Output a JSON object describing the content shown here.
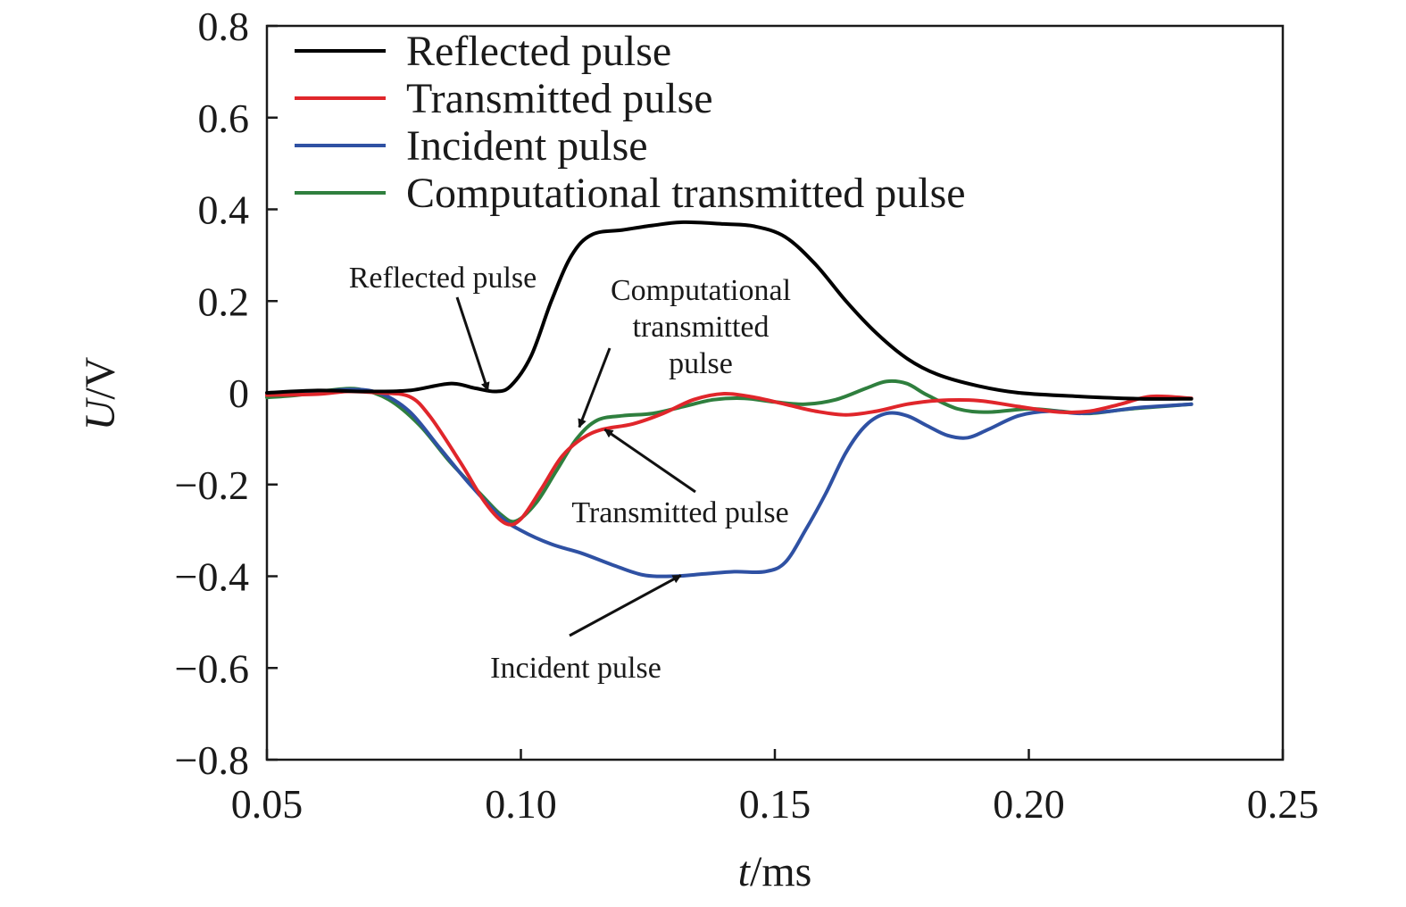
{
  "chart_data": {
    "type": "line",
    "xlabel_var": "t",
    "xlabel_unit": "/ms",
    "ylabel_var": "U",
    "ylabel_unit": "/V",
    "xlim": [
      0.05,
      0.25
    ],
    "ylim": [
      -0.8,
      0.8
    ],
    "x_ticks": [
      {
        "value": 0.05,
        "label": "0.05"
      },
      {
        "value": 0.1,
        "label": "0.10"
      },
      {
        "value": 0.15,
        "label": "0.15"
      },
      {
        "value": 0.2,
        "label": "0.20"
      },
      {
        "value": 0.25,
        "label": "0.25"
      }
    ],
    "y_ticks": [
      {
        "value": 0.8,
        "label": "0.8"
      },
      {
        "value": 0.6,
        "label": "0.6"
      },
      {
        "value": 0.4,
        "label": "0.4"
      },
      {
        "value": 0.2,
        "label": "0.2"
      },
      {
        "value": 0,
        "label": "0"
      },
      {
        "value": -0.2,
        "label": "−0.2"
      },
      {
        "value": -0.4,
        "label": "−0.4"
      },
      {
        "value": -0.6,
        "label": "−0.6"
      },
      {
        "value": -0.8,
        "label": "−0.8"
      }
    ],
    "grid": false,
    "legend_position": "top-left",
    "series": [
      {
        "name": "Reflected pulse",
        "color": "#000000",
        "points": [
          [
            0.05,
            0.0
          ],
          [
            0.06,
            0.005
          ],
          [
            0.07,
            0.003
          ],
          [
            0.078,
            0.005
          ],
          [
            0.086,
            0.02
          ],
          [
            0.091,
            0.01
          ],
          [
            0.095,
            0.003
          ],
          [
            0.098,
            0.015
          ],
          [
            0.102,
            0.08
          ],
          [
            0.106,
            0.2
          ],
          [
            0.11,
            0.3
          ],
          [
            0.114,
            0.345
          ],
          [
            0.12,
            0.355
          ],
          [
            0.126,
            0.365
          ],
          [
            0.132,
            0.372
          ],
          [
            0.14,
            0.368
          ],
          [
            0.146,
            0.363
          ],
          [
            0.152,
            0.34
          ],
          [
            0.158,
            0.28
          ],
          [
            0.164,
            0.2
          ],
          [
            0.17,
            0.13
          ],
          [
            0.176,
            0.075
          ],
          [
            0.182,
            0.04
          ],
          [
            0.19,
            0.015
          ],
          [
            0.198,
            0.0
          ],
          [
            0.21,
            -0.008
          ],
          [
            0.222,
            -0.013
          ],
          [
            0.232,
            -0.013
          ]
        ]
      },
      {
        "name": "Transmitted pulse",
        "color": "#e0262b",
        "points": [
          [
            0.05,
            -0.005
          ],
          [
            0.06,
            -0.003
          ],
          [
            0.066,
            0.003
          ],
          [
            0.072,
            0.0
          ],
          [
            0.078,
            -0.008
          ],
          [
            0.082,
            -0.05
          ],
          [
            0.088,
            -0.15
          ],
          [
            0.093,
            -0.24
          ],
          [
            0.097,
            -0.285
          ],
          [
            0.1,
            -0.275
          ],
          [
            0.104,
            -0.21
          ],
          [
            0.108,
            -0.14
          ],
          [
            0.112,
            -0.1
          ],
          [
            0.116,
            -0.08
          ],
          [
            0.122,
            -0.068
          ],
          [
            0.128,
            -0.045
          ],
          [
            0.134,
            -0.015
          ],
          [
            0.14,
            -0.002
          ],
          [
            0.146,
            -0.01
          ],
          [
            0.152,
            -0.025
          ],
          [
            0.158,
            -0.04
          ],
          [
            0.164,
            -0.048
          ],
          [
            0.17,
            -0.04
          ],
          [
            0.176,
            -0.025
          ],
          [
            0.182,
            -0.017
          ],
          [
            0.19,
            -0.017
          ],
          [
            0.198,
            -0.03
          ],
          [
            0.206,
            -0.042
          ],
          [
            0.212,
            -0.04
          ],
          [
            0.218,
            -0.025
          ],
          [
            0.224,
            -0.008
          ],
          [
            0.232,
            -0.012
          ]
        ]
      },
      {
        "name": "Incident pulse",
        "color": "#2f51a3",
        "points": [
          [
            0.05,
            -0.005
          ],
          [
            0.058,
            0.0
          ],
          [
            0.066,
            0.007
          ],
          [
            0.072,
            0.0
          ],
          [
            0.078,
            -0.04
          ],
          [
            0.084,
            -0.12
          ],
          [
            0.09,
            -0.2
          ],
          [
            0.096,
            -0.27
          ],
          [
            0.1,
            -0.3
          ],
          [
            0.106,
            -0.33
          ],
          [
            0.112,
            -0.35
          ],
          [
            0.118,
            -0.375
          ],
          [
            0.124,
            -0.397
          ],
          [
            0.13,
            -0.4
          ],
          [
            0.136,
            -0.395
          ],
          [
            0.142,
            -0.39
          ],
          [
            0.148,
            -0.39
          ],
          [
            0.152,
            -0.37
          ],
          [
            0.156,
            -0.3
          ],
          [
            0.16,
            -0.22
          ],
          [
            0.164,
            -0.13
          ],
          [
            0.168,
            -0.07
          ],
          [
            0.172,
            -0.045
          ],
          [
            0.176,
            -0.05
          ],
          [
            0.18,
            -0.072
          ],
          [
            0.184,
            -0.093
          ],
          [
            0.188,
            -0.098
          ],
          [
            0.192,
            -0.08
          ],
          [
            0.198,
            -0.05
          ],
          [
            0.204,
            -0.04
          ],
          [
            0.21,
            -0.045
          ],
          [
            0.216,
            -0.04
          ],
          [
            0.222,
            -0.032
          ],
          [
            0.232,
            -0.025
          ]
        ]
      },
      {
        "name": "Computational transmitted pulse",
        "color": "#2f7f3e",
        "points": [
          [
            0.05,
            -0.01
          ],
          [
            0.056,
            -0.005
          ],
          [
            0.062,
            0.005
          ],
          [
            0.068,
            0.008
          ],
          [
            0.074,
            -0.015
          ],
          [
            0.08,
            -0.07
          ],
          [
            0.086,
            -0.15
          ],
          [
            0.092,
            -0.22
          ],
          [
            0.096,
            -0.265
          ],
          [
            0.099,
            -0.28
          ],
          [
            0.103,
            -0.24
          ],
          [
            0.107,
            -0.17
          ],
          [
            0.111,
            -0.1
          ],
          [
            0.115,
            -0.06
          ],
          [
            0.12,
            -0.05
          ],
          [
            0.126,
            -0.045
          ],
          [
            0.132,
            -0.03
          ],
          [
            0.138,
            -0.015
          ],
          [
            0.144,
            -0.012
          ],
          [
            0.15,
            -0.02
          ],
          [
            0.156,
            -0.025
          ],
          [
            0.162,
            -0.015
          ],
          [
            0.168,
            0.01
          ],
          [
            0.172,
            0.025
          ],
          [
            0.176,
            0.02
          ],
          [
            0.18,
            -0.005
          ],
          [
            0.186,
            -0.035
          ],
          [
            0.192,
            -0.042
          ],
          [
            0.2,
            -0.035
          ],
          [
            0.206,
            -0.04
          ],
          [
            0.212,
            -0.045
          ],
          [
            0.22,
            -0.035
          ],
          [
            0.232,
            -0.025
          ]
        ]
      }
    ],
    "annotations": [
      {
        "text": "Reflected pulse",
        "arrow_to": [
          0.0935,
          0.005
        ]
      },
      {
        "text": "Computational",
        "line2": "transmitted",
        "line3": "pulse",
        "arrow_to": [
          0.1115,
          -0.075
        ]
      },
      {
        "text": "Transmitted pulse",
        "arrow_to": [
          0.1165,
          -0.08
        ]
      },
      {
        "text": "Incident pulse",
        "arrow_to": [
          0.1315,
          -0.398
        ]
      }
    ]
  }
}
